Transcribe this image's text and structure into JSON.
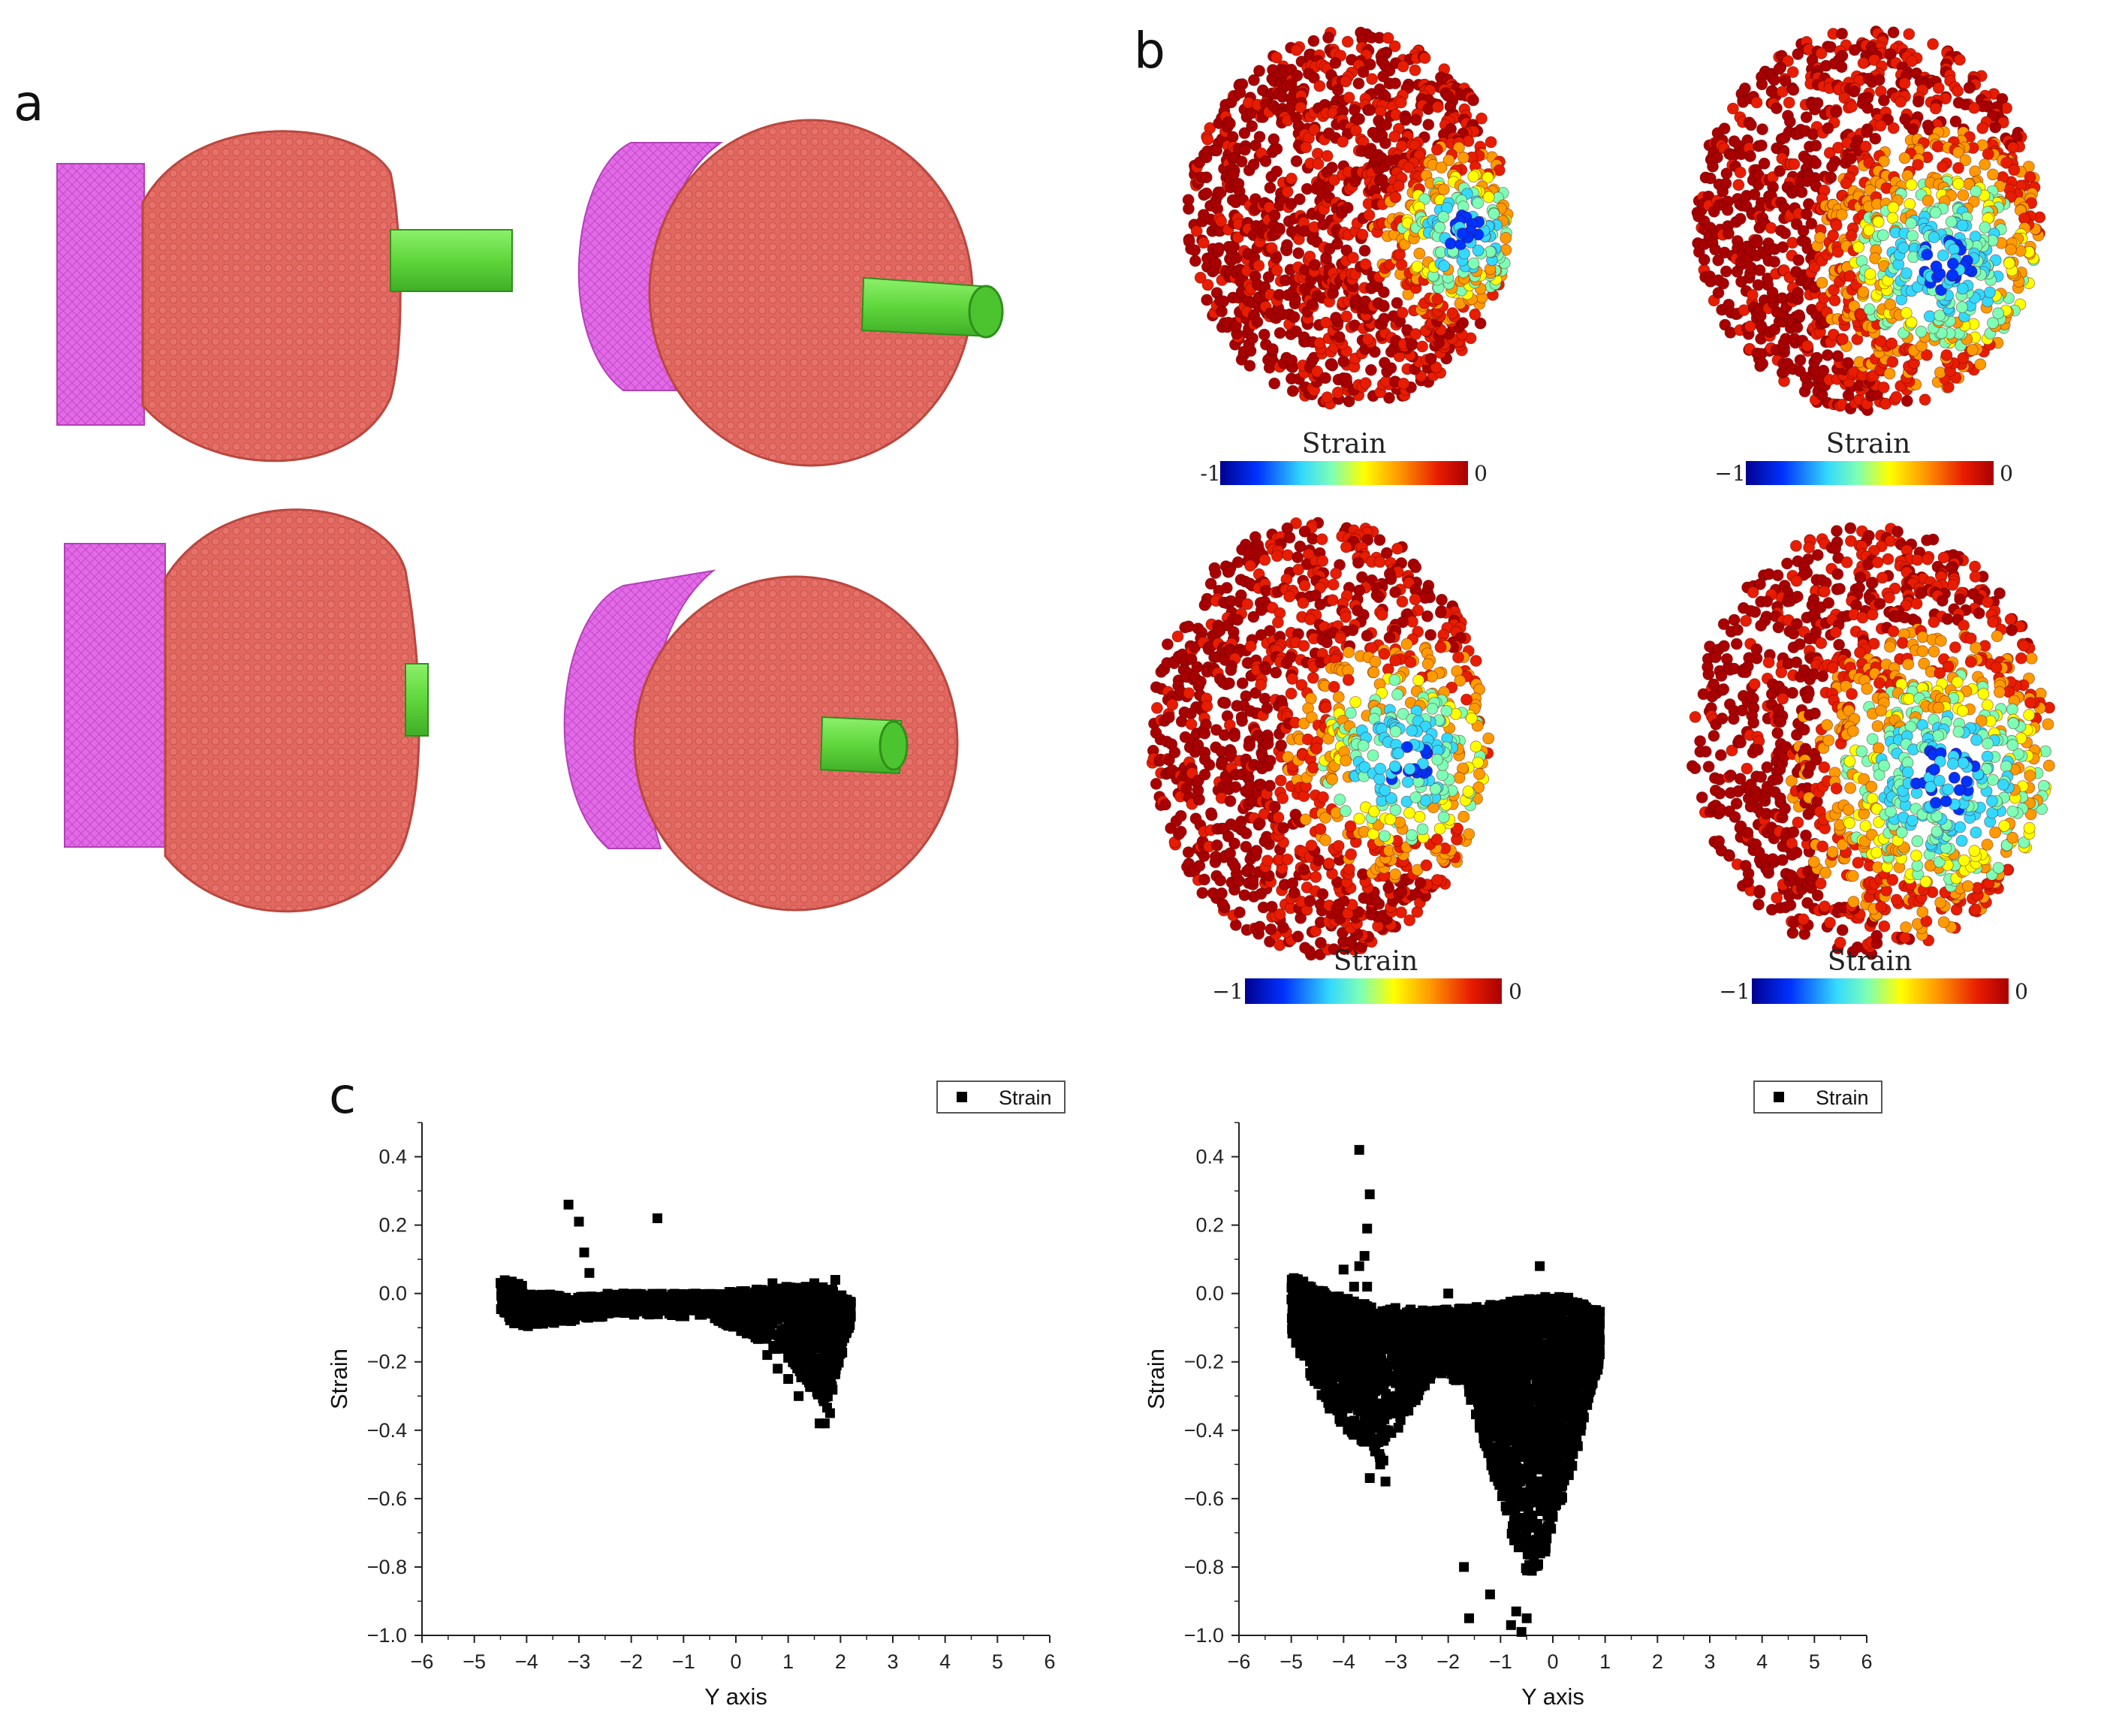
{
  "panels": {
    "a": "a",
    "b": "b",
    "c": "c"
  },
  "colors": {
    "membrane": "#e2675f",
    "membrane_edge": "#c24a44",
    "block": "#e26ae6",
    "rod": "#6be04a",
    "strain_scale": [
      "#00008f",
      "#0032ff",
      "#33d9ff",
      "#7dffb6",
      "#ffff00",
      "#ff9a00",
      "#e81c00",
      "#a80000"
    ]
  },
  "colorbars": [
    {
      "title": "Strain",
      "min_label": "-1",
      "max_label": "0"
    },
    {
      "title": "Strain",
      "min_label": "−1",
      "max_label": "0"
    },
    {
      "title": "Strain",
      "min_label": "−1",
      "max_label": "0"
    },
    {
      "title": "Strain",
      "min_label": "−1",
      "max_label": "0"
    }
  ],
  "chart_data": [
    {
      "type": "scatter",
      "title": "",
      "xlabel": "Y axis",
      "ylabel": "Strain",
      "xlim": [
        -6,
        6
      ],
      "ylim": [
        -1.0,
        0.5
      ],
      "xticks": [
        -6,
        -5,
        -4,
        -3,
        -2,
        -1,
        0,
        1,
        2,
        3,
        4,
        5,
        6
      ],
      "xtick_labels": [
        "−6",
        "−5",
        "−4",
        "−3",
        "−2",
        "−1",
        "0",
        "1",
        "2",
        "3",
        "4",
        "5",
        "6"
      ],
      "yticks": [
        0.4,
        0.2,
        0.0,
        -0.2,
        -0.4,
        -0.6,
        -0.8,
        -1.0
      ],
      "ytick_labels": [
        "0.4",
        "0.2",
        "0.0",
        "−0.2",
        "−0.4",
        "−0.6",
        "−0.8",
        "−1.0"
      ],
      "legend": {
        "label": "Strain",
        "position": "top-right"
      },
      "series": [
        {
          "name": "Strain",
          "bands": [
            {
              "x": [
                -4.5,
                -4.0
              ],
              "lo": [
                -0.08,
                -0.1
              ],
              "hi": [
                0.05,
                0.02
              ],
              "n": 120
            },
            {
              "x": [
                -4.0,
                -2.5
              ],
              "lo": [
                -0.1,
                -0.07
              ],
              "hi": [
                0.0,
                -0.01
              ],
              "n": 260
            },
            {
              "x": [
                -2.5,
                -0.5
              ],
              "lo": [
                -0.06,
                -0.07
              ],
              "hi": [
                0.0,
                0.0
              ],
              "n": 300
            },
            {
              "x": [
                -0.5,
                1.0
              ],
              "lo": [
                -0.07,
                -0.18
              ],
              "hi": [
                0.0,
                0.02
              ],
              "n": 320
            },
            {
              "x": [
                1.0,
                1.7
              ],
              "lo": [
                -0.2,
                -0.33
              ],
              "hi": [
                0.02,
                0.02
              ],
              "n": 300
            },
            {
              "x": [
                1.7,
                2.2
              ],
              "lo": [
                -0.38,
                -0.08
              ],
              "hi": [
                0.03,
                -0.02
              ],
              "n": 260
            }
          ],
          "points": [
            {
              "x": -3.2,
              "y": 0.26
            },
            {
              "x": -3.0,
              "y": 0.21
            },
            {
              "x": -2.9,
              "y": 0.12
            },
            {
              "x": -2.8,
              "y": 0.06
            },
            {
              "x": -1.5,
              "y": 0.22
            },
            {
              "x": 0.7,
              "y": 0.03
            },
            {
              "x": 0.6,
              "y": -0.18
            },
            {
              "x": 0.8,
              "y": -0.22
            },
            {
              "x": 1.0,
              "y": -0.25
            },
            {
              "x": 1.2,
              "y": -0.3
            },
            {
              "x": 1.4,
              "y": -0.26
            },
            {
              "x": 1.6,
              "y": -0.38
            },
            {
              "x": 1.7,
              "y": -0.38
            },
            {
              "x": 1.8,
              "y": -0.35
            },
            {
              "x": 1.9,
              "y": 0.04
            },
            {
              "x": 1.5,
              "y": 0.03
            }
          ]
        }
      ]
    },
    {
      "type": "scatter",
      "title": "",
      "xlabel": "Y axis",
      "ylabel": "Strain",
      "xlim": [
        -6,
        6
      ],
      "ylim": [
        -1.0,
        0.5
      ],
      "xticks": [
        -6,
        -5,
        -4,
        -3,
        -2,
        -1,
        0,
        1,
        2,
        3,
        4,
        5,
        6
      ],
      "xtick_labels": [
        "−6",
        "−5",
        "−4",
        "−3",
        "−2",
        "−1",
        "0",
        "1",
        "2",
        "3",
        "4",
        "5",
        "6"
      ],
      "yticks": [
        0.4,
        0.2,
        0.0,
        -0.2,
        -0.4,
        -0.6,
        -0.8,
        -1.0
      ],
      "ytick_labels": [
        "0.4",
        "0.2",
        "0.0",
        "−0.2",
        "−0.4",
        "−0.6",
        "−0.8",
        "−1.0"
      ],
      "legend": {
        "label": "Strain",
        "position": "top-right"
      },
      "series": [
        {
          "name": "Strain",
          "bands": [
            {
              "x": [
                -5.0,
                -4.5
              ],
              "lo": [
                -0.12,
                -0.28
              ],
              "hi": [
                0.05,
                0.02
              ],
              "n": 200
            },
            {
              "x": [
                -4.5,
                -3.8
              ],
              "lo": [
                -0.3,
                -0.42
              ],
              "hi": [
                0.02,
                -0.02
              ],
              "n": 300
            },
            {
              "x": [
                -3.8,
                -3.2
              ],
              "lo": [
                -0.42,
                -0.5
              ],
              "hi": [
                -0.02,
                -0.04
              ],
              "n": 280
            },
            {
              "x": [
                -3.2,
                -2.3
              ],
              "lo": [
                -0.45,
                -0.25
              ],
              "hi": [
                -0.04,
                -0.05
              ],
              "n": 300
            },
            {
              "x": [
                -2.3,
                -1.6
              ],
              "lo": [
                -0.22,
                -0.28
              ],
              "hi": [
                -0.05,
                -0.04
              ],
              "n": 260
            },
            {
              "x": [
                -1.6,
                -1.0
              ],
              "lo": [
                -0.3,
                -0.6
              ],
              "hi": [
                -0.04,
                -0.03
              ],
              "n": 380
            },
            {
              "x": [
                -1.0,
                -0.4
              ],
              "lo": [
                -0.6,
                -0.9
              ],
              "hi": [
                -0.03,
                -0.01
              ],
              "n": 520
            },
            {
              "x": [
                -0.4,
                0.3
              ],
              "lo": [
                -0.88,
                -0.55
              ],
              "hi": [
                -0.01,
                -0.01
              ],
              "n": 520
            },
            {
              "x": [
                0.3,
                0.9
              ],
              "lo": [
                -0.55,
                -0.2
              ],
              "hi": [
                -0.01,
                -0.05
              ],
              "n": 380
            }
          ],
          "points": [
            {
              "x": -3.7,
              "y": 0.42
            },
            {
              "x": -3.5,
              "y": 0.29
            },
            {
              "x": -3.55,
              "y": 0.19
            },
            {
              "x": -3.6,
              "y": 0.11
            },
            {
              "x": -3.7,
              "y": 0.08
            },
            {
              "x": -4.0,
              "y": 0.07
            },
            {
              "x": -3.8,
              "y": 0.02
            },
            {
              "x": -3.55,
              "y": 0.02
            },
            {
              "x": -2.0,
              "y": 0.0
            },
            {
              "x": -0.25,
              "y": 0.08
            },
            {
              "x": -3.2,
              "y": -0.55
            },
            {
              "x": -3.5,
              "y": -0.54
            },
            {
              "x": -3.3,
              "y": -0.5
            },
            {
              "x": -1.6,
              "y": -0.95
            },
            {
              "x": -1.7,
              "y": -0.8
            },
            {
              "x": -0.8,
              "y": -0.97
            },
            {
              "x": -0.6,
              "y": -0.99
            },
            {
              "x": -0.7,
              "y": -0.93
            },
            {
              "x": -1.2,
              "y": -0.88
            },
            {
              "x": -0.5,
              "y": -0.95
            },
            {
              "x": 0.8,
              "y": -0.08
            }
          ]
        }
      ]
    }
  ]
}
